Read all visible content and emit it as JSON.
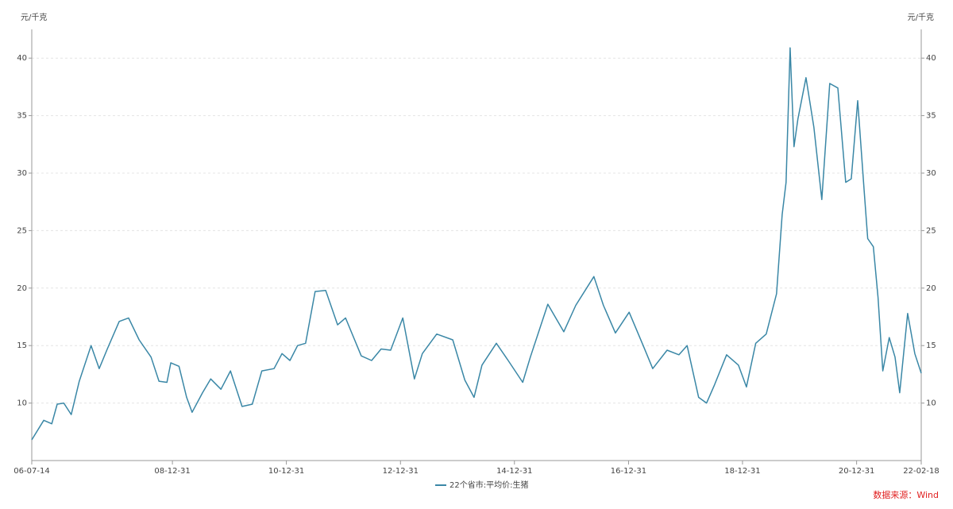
{
  "chart_data": {
    "type": "line",
    "y_label": "元/千克",
    "y2_label": "元/千克",
    "x": [
      "06-07-14",
      "06-09-29",
      "06-11-19",
      "06-12-24",
      "07-02-04",
      "07-03-24",
      "07-05-14",
      "07-07-29",
      "07-09-19",
      "07-11-10",
      "08-01-25",
      "08-03-25",
      "08-06-01",
      "08-08-16",
      "08-10-06",
      "08-11-26",
      "08-12-21",
      "09-02-11",
      "09-04-01",
      "09-05-06",
      "09-07-12",
      "09-09-02",
      "09-11-07",
      "10-01-07",
      "10-03-22",
      "10-05-27",
      "10-07-27",
      "10-10-13",
      "10-12-03",
      "11-01-23",
      "11-03-13",
      "11-05-03",
      "11-07-03",
      "11-09-09",
      "11-11-24",
      "12-01-14",
      "12-04-24",
      "12-06-29",
      "12-08-29",
      "12-10-29",
      "13-01-15",
      "13-03-30",
      "13-05-20",
      "13-08-20",
      "13-12-01",
      "14-02-16",
      "14-04-16",
      "14-06-06",
      "14-09-06",
      "14-11-21",
      "15-02-22",
      "15-04-12",
      "15-08-02",
      "15-11-12",
      "16-01-28",
      "16-05-23",
      "16-07-23",
      "16-10-08",
      "17-01-04",
      "17-04-04",
      "17-06-04",
      "17-09-04",
      "17-11-19",
      "18-01-10",
      "18-03-25",
      "18-05-15",
      "18-07-05",
      "18-09-20",
      "18-12-05",
      "19-01-25",
      "19-03-26",
      "19-06-01",
      "19-08-06",
      "19-09-11",
      "19-10-06",
      "19-11-01",
      "19-11-26",
      "19-12-21",
      "20-02-11",
      "20-04-01",
      "20-05-22",
      "20-07-12",
      "20-09-02",
      "20-10-22",
      "20-11-27",
      "21-01-07",
      "21-02-17",
      "21-03-12",
      "21-04-17",
      "21-05-17",
      "21-06-17",
      "21-07-28",
      "21-09-03",
      "21-10-03",
      "21-11-23",
      "22-01-08",
      "22-02-18"
    ],
    "series": [
      {
        "name": "22个省市:平均价:生猪",
        "color": "#3a87a6",
        "values": [
          6.8,
          8.5,
          8.2,
          9.9,
          10,
          9.0,
          11.9,
          15,
          13,
          14.7,
          17.1,
          17.4,
          15.5,
          14,
          11.9,
          11.8,
          13.5,
          13.2,
          10.5,
          9.2,
          10.9,
          12.1,
          11.2,
          12.8,
          9.7,
          9.9,
          12.8,
          13,
          14.3,
          13.7,
          15,
          15.2,
          19.7,
          19.8,
          16.8,
          17.4,
          14.1,
          13.7,
          14.7,
          14.6,
          17.4,
          12.1,
          14.3,
          16,
          15.5,
          12,
          10.5,
          13.3,
          15.2,
          13.7,
          11.8,
          14,
          18.6,
          16.2,
          18.5,
          21,
          18.5,
          16.1,
          17.9,
          15,
          13,
          14.6,
          14.2,
          15,
          10.5,
          10,
          11.6,
          14.2,
          13.3,
          11.4,
          15.2,
          16,
          19.5,
          26.4,
          29.2,
          40.9,
          32.3,
          34.7,
          38.3,
          34,
          27.7,
          37.8,
          37.4,
          29.2,
          29.5,
          36.3,
          28.5,
          24.3,
          23.6,
          19.2,
          12.8,
          15.7,
          14,
          10.9,
          17.8,
          14.3,
          12.6
        ]
      }
    ],
    "xlim": [
      "06-07-14",
      "22-02-18"
    ],
    "xticks": [
      "06-07-14",
      "08-12-31",
      "10-12-31",
      "12-12-31",
      "14-12-31",
      "16-12-31",
      "18-12-31",
      "20-12-31",
      "22-02-18"
    ],
    "ylim": [
      5,
      42.5
    ],
    "yticks": [
      10,
      15,
      20,
      25,
      30,
      35,
      40
    ],
    "y2lim": [
      5,
      42.5
    ],
    "y2ticks": [
      10,
      15,
      20,
      25,
      30,
      35,
      40
    ],
    "grid": true,
    "legend": "bottom",
    "source": "数据来源：Wind"
  }
}
